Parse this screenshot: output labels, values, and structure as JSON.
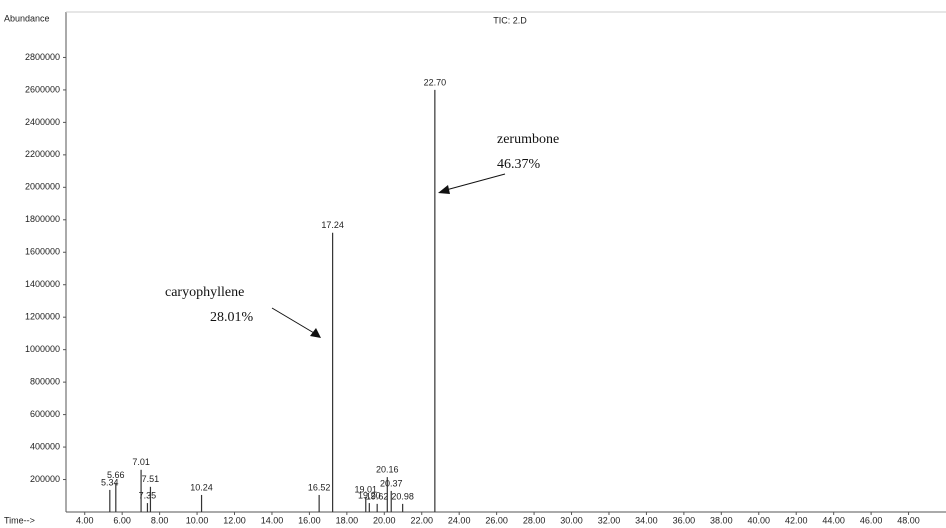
{
  "chart_data": {
    "type": "peaks",
    "title": "TIC: 2.D",
    "y_label": "Abundance",
    "x_label": "Time-->",
    "x": [
      5.34,
      5.66,
      7.01,
      7.35,
      7.51,
      10.24,
      16.52,
      17.24,
      19.01,
      19.2,
      19.62,
      20.16,
      20.37,
      20.98,
      22.7
    ],
    "x_labels": [
      "5.34",
      "5.66",
      "7.01",
      "7.35",
      "7.51",
      "10.24",
      "16.52",
      "17.24",
      "19.01",
      "19.20",
      "19.62",
      "20.16",
      "20.37",
      "20.98",
      "22.70"
    ],
    "values": [
      136000,
      180000,
      260000,
      55000,
      155000,
      105000,
      105000,
      1720000,
      93000,
      55000,
      50000,
      215000,
      130000,
      50000,
      2600000
    ],
    "color": "#333333",
    "xlim": [
      3,
      50
    ],
    "ylim": [
      0,
      3080000
    ],
    "xticks": [
      {
        "value": 4,
        "label": "4.00"
      },
      {
        "value": 6,
        "label": "6.00"
      },
      {
        "value": 8,
        "label": "8.00"
      },
      {
        "value": 10,
        "label": "10.00"
      },
      {
        "value": 12,
        "label": "12.00"
      },
      {
        "value": 14,
        "label": "14.00"
      },
      {
        "value": 16,
        "label": "16.00"
      },
      {
        "value": 18,
        "label": "18.00"
      },
      {
        "value": 20,
        "label": "20.00"
      },
      {
        "value": 22,
        "label": "22.00"
      },
      {
        "value": 24,
        "label": "24.00"
      },
      {
        "value": 26,
        "label": "26.00"
      },
      {
        "value": 28,
        "label": "28.00"
      },
      {
        "value": 30,
        "label": "30.00"
      },
      {
        "value": 32,
        "label": "32.00"
      },
      {
        "value": 34,
        "label": "34.00"
      },
      {
        "value": 36,
        "label": "36.00"
      },
      {
        "value": 38,
        "label": "38.00"
      },
      {
        "value": 40,
        "label": "40.00"
      },
      {
        "value": 42,
        "label": "42.00"
      },
      {
        "value": 44,
        "label": "44.00"
      },
      {
        "value": 46,
        "label": "46.00"
      },
      {
        "value": 48,
        "label": "48.00"
      }
    ],
    "yticks": [
      200000,
      400000,
      600000,
      800000,
      1000000,
      1200000,
      1400000,
      1600000,
      1800000,
      2000000,
      2200000,
      2400000,
      2600000,
      2800000
    ],
    "annotations": [
      {
        "name": "zerumbone",
        "percent": "46.37%"
      },
      {
        "name": "caryophyllene",
        "percent": "28.01%"
      }
    ]
  }
}
